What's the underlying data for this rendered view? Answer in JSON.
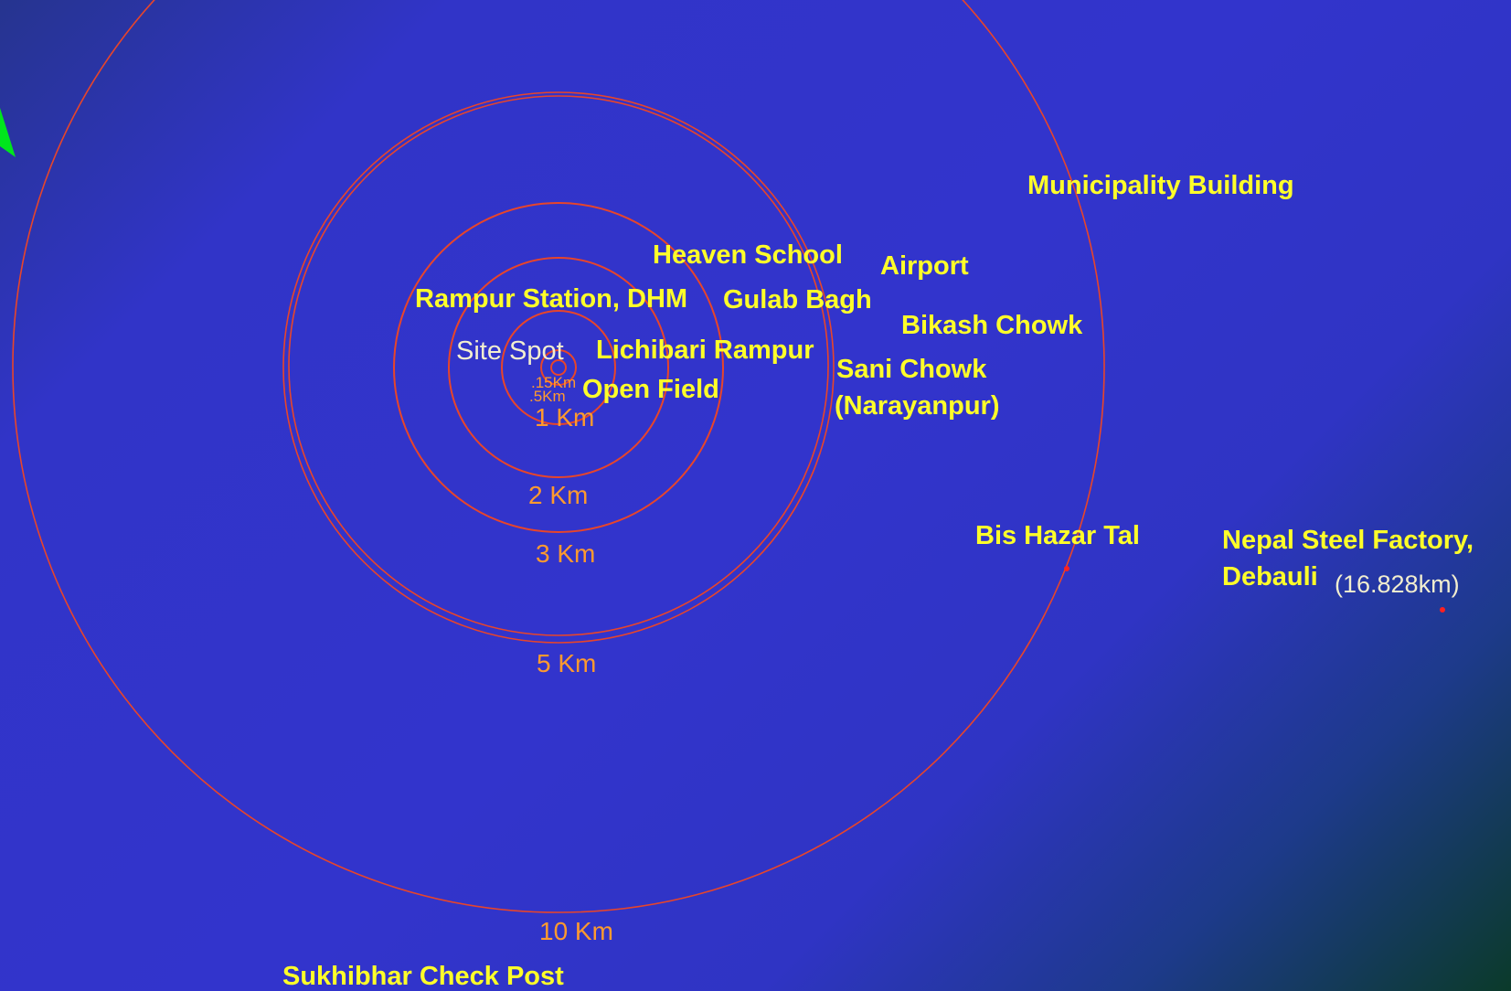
{
  "colors": {
    "ring": "#e8452a",
    "place_label": "#ffff29",
    "distance_label": "#ff9a2e",
    "site_label": "#f2eecf",
    "marker": "#ff2020",
    "north_arrow": "#00e61c"
  },
  "site": {
    "label": "Site Spot"
  },
  "rings": [
    {
      "label": ".15Km"
    },
    {
      "label": ".5Km"
    },
    {
      "label": "1 Km"
    },
    {
      "label": "2 Km"
    },
    {
      "label": "3 Km"
    },
    {
      "label": "5 Km"
    },
    {
      "label": "10 Km"
    }
  ],
  "places": [
    {
      "label": "Municipality Building"
    },
    {
      "label": "Heaven School"
    },
    {
      "label": "Airport"
    },
    {
      "label": "Rampur Station, DHM"
    },
    {
      "label": "Gulab Bagh"
    },
    {
      "label": "Bikash Chowk"
    },
    {
      "label": "Lichibari Rampur"
    },
    {
      "label": "Sani Chowk"
    },
    {
      "label": "(Narayanpur)"
    },
    {
      "label": "Open Field"
    },
    {
      "label": "Bis Hazar Tal"
    },
    {
      "label": "Nepal Steel Factory,"
    },
    {
      "label": "Debauli"
    },
    {
      "label": "Sukhibhar Check Post"
    }
  ],
  "far_distance": "(16.828km)"
}
